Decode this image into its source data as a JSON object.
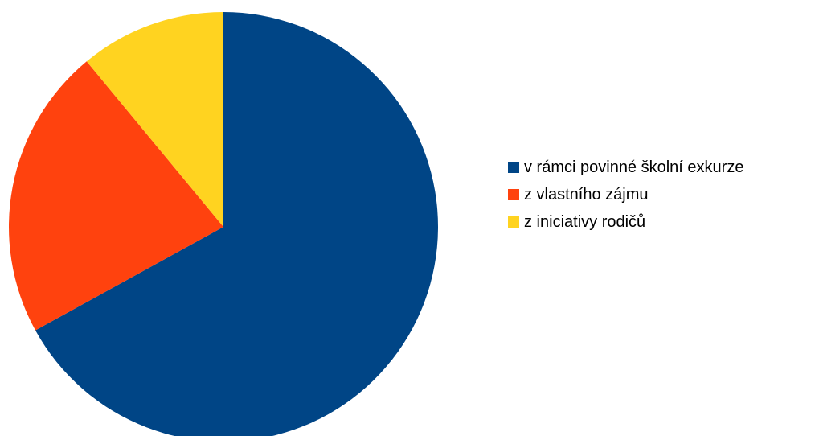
{
  "chart_data": {
    "type": "pie",
    "title": "",
    "legend_position": "right",
    "start_angle_deg": 0,
    "direction": "clockwise",
    "series": [
      {
        "name": "v rámci povinné školní exkurze",
        "value": 67,
        "color": "#004586"
      },
      {
        "name": "z vlastního zájmu",
        "value": 22,
        "color": "#ff420e"
      },
      {
        "name": "z iniciativy rodičů",
        "value": 11,
        "color": "#ffd320"
      }
    ]
  }
}
